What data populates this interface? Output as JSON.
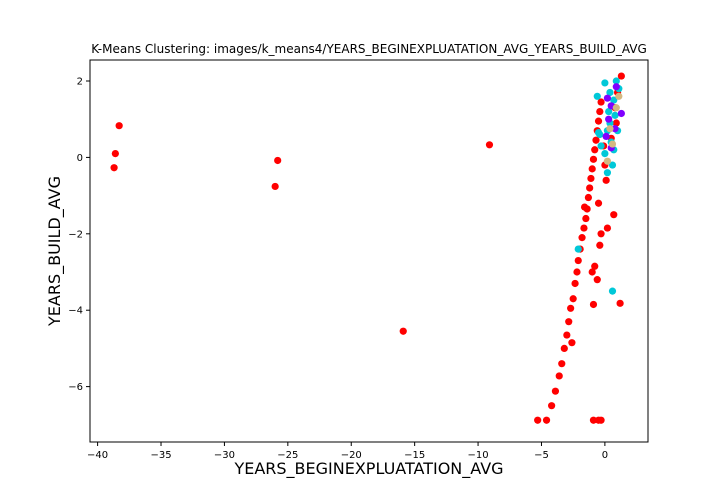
{
  "chart_data": {
    "type": "scatter",
    "title": "K-Means Clustering: images/k_means4/YEARS_BEGINEXPLUATATION_AVG_YEARS_BUILD_AVG",
    "xlabel": "YEARS_BEGINEXPLUATATION_AVG",
    "ylabel": "YEARS_BUILD_AVG",
    "xlim": [
      -40.6,
      3.4
    ],
    "ylim": [
      -7.45,
      2.55
    ],
    "xticks": [
      -40,
      -35,
      -30,
      -25,
      -20,
      -15,
      -10,
      -5,
      0
    ],
    "yticks": [
      -6,
      -4,
      -2,
      0,
      2
    ],
    "grid": false,
    "legend": "none",
    "series": [
      {
        "color": "#ff0000",
        "points": [
          [
            -38.3,
            0.83
          ],
          [
            -38.6,
            0.1
          ],
          [
            -38.7,
            -0.27
          ],
          [
            -25.8,
            -0.08
          ],
          [
            -26.0,
            -0.76
          ],
          [
            -15.9,
            -4.55
          ],
          [
            -9.1,
            0.33
          ],
          [
            -5.3,
            -6.88
          ],
          [
            -4.6,
            -6.88
          ],
          [
            -4.2,
            -6.5
          ],
          [
            -3.9,
            -6.12
          ],
          [
            -3.6,
            -5.72
          ],
          [
            -3.4,
            -5.4
          ],
          [
            -3.2,
            -5.0
          ],
          [
            -3.0,
            -4.65
          ],
          [
            -2.85,
            -4.3
          ],
          [
            -2.7,
            -3.95
          ],
          [
            -2.6,
            -4.85
          ],
          [
            -2.5,
            -3.7
          ],
          [
            -2.35,
            -3.3
          ],
          [
            -2.2,
            -3.0
          ],
          [
            -2.1,
            -2.7
          ],
          [
            -1.95,
            -2.4
          ],
          [
            -1.8,
            -2.1
          ],
          [
            -1.65,
            -1.85
          ],
          [
            -1.5,
            -1.6
          ],
          [
            -1.4,
            -1.35
          ],
          [
            -1.6,
            -1.3
          ],
          [
            -1.3,
            -1.05
          ],
          [
            -1.2,
            -0.8
          ],
          [
            -1.1,
            -0.55
          ],
          [
            -1.0,
            -0.3
          ],
          [
            -0.9,
            -0.05
          ],
          [
            -0.8,
            0.2
          ],
          [
            -0.7,
            0.45
          ],
          [
            -0.6,
            0.7
          ],
          [
            -0.5,
            0.95
          ],
          [
            -0.4,
            1.2
          ],
          [
            -0.3,
            1.45
          ],
          [
            -0.1,
            0.3
          ],
          [
            0.0,
            -0.2
          ],
          [
            0.1,
            -0.6
          ],
          [
            -0.5,
            -1.2
          ],
          [
            -0.3,
            -2.0
          ],
          [
            -0.4,
            -2.3
          ],
          [
            -0.8,
            -2.85
          ],
          [
            -1.0,
            -3.0
          ],
          [
            -0.6,
            -3.2
          ],
          [
            -0.9,
            -3.85
          ],
          [
            1.2,
            -3.82
          ],
          [
            0.7,
            -1.5
          ],
          [
            0.2,
            -1.85
          ],
          [
            1.3,
            2.13
          ],
          [
            1.0,
            1.7
          ],
          [
            0.8,
            1.3
          ],
          [
            0.9,
            0.9
          ],
          [
            0.5,
            0.5
          ],
          [
            -0.9,
            -6.88
          ],
          [
            -0.5,
            -6.88
          ],
          [
            -0.3,
            -6.88
          ]
        ]
      },
      {
        "color": "#00c8d8",
        "points": [
          [
            -2.1,
            -2.4
          ],
          [
            0.6,
            -3.5
          ],
          [
            -0.6,
            1.6
          ],
          [
            -0.5,
            0.65
          ],
          [
            0.0,
            1.95
          ],
          [
            0.4,
            1.7
          ],
          [
            0.9,
            2.0
          ],
          [
            1.1,
            1.8
          ],
          [
            0.7,
            1.5
          ],
          [
            0.3,
            1.2
          ],
          [
            0.8,
            1.1
          ],
          [
            0.2,
            0.7
          ],
          [
            0.5,
            0.4
          ],
          [
            0.0,
            0.1
          ],
          [
            0.6,
            -0.2
          ],
          [
            -0.3,
            0.3
          ],
          [
            1.0,
            0.7
          ],
          [
            0.4,
            0.9
          ],
          [
            -0.4,
            0.6
          ],
          [
            0.7,
            0.2
          ],
          [
            0.2,
            -0.4
          ]
        ]
      },
      {
        "color": "#8000ff",
        "points": [
          [
            0.2,
            1.55
          ],
          [
            0.5,
            1.35
          ],
          [
            1.3,
            1.15
          ],
          [
            0.3,
            1.0
          ],
          [
            0.8,
            0.75
          ],
          [
            0.5,
            0.25
          ],
          [
            0.9,
            1.85
          ],
          [
            0.1,
            0.55
          ]
        ]
      },
      {
        "color": "#d4b880",
        "points": [
          [
            0.6,
            0.35
          ],
          [
            0.9,
            1.3
          ],
          [
            0.2,
            -0.1
          ],
          [
            1.1,
            1.6
          ],
          [
            0.4,
            0.75
          ]
        ]
      }
    ]
  }
}
